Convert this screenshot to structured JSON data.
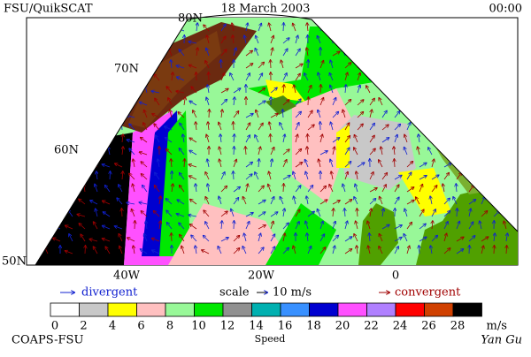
{
  "header": {
    "left": "FSU/QuikSCAT",
    "center": "18 March 2003",
    "right": "00:00"
  },
  "map": {
    "latitude_labels": [
      "80N",
      "70N",
      "60N",
      "50N"
    ],
    "longitude_labels": [
      "40W",
      "20W",
      "0"
    ]
  },
  "legend": {
    "divergent": "divergent",
    "scale": "scale",
    "scale_value": "10 m/s",
    "convergent": "convergent"
  },
  "colorbar": {
    "ticks": [
      0,
      2,
      4,
      6,
      8,
      10,
      12,
      14,
      16,
      18,
      20,
      22,
      24,
      26,
      28
    ],
    "unit": "m/s",
    "title": "Speed",
    "colors": [
      "#ffffff",
      "#c8c8c8",
      "#ffff00",
      "#ffc0c0",
      "#98f898",
      "#00e800",
      "#909090",
      "#00b0b0",
      "#3890ff",
      "#0000d0",
      "#ff50ff",
      "#b080ff",
      "#ff0000",
      "#d04000",
      "#000000"
    ]
  },
  "footer": {
    "left": "COAPS-FSU",
    "right": "Yan Gu"
  }
}
